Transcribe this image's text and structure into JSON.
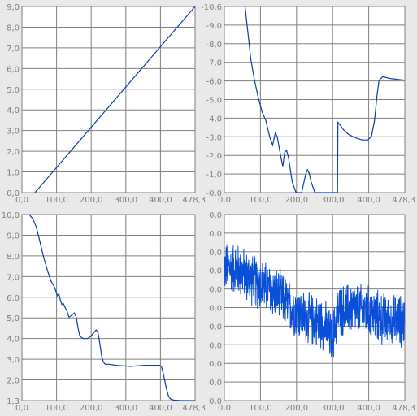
{
  "chart_data": [
    {
      "type": "line",
      "title": "",
      "xlabel": "",
      "ylabel": "",
      "xlim": [
        0,
        478.3
      ],
      "ylim": [
        0,
        9.0
      ],
      "x_ticks": [
        "0,0",
        "100,0",
        "200,0",
        "300,0",
        "400,0",
        "478,3"
      ],
      "y_ticks": [
        "0,0",
        "1,0",
        "2,0",
        "3,0",
        "4,0",
        "5,0",
        "6,0",
        "7,0",
        "8,0",
        "9,0"
      ],
      "grid": true,
      "series": [
        {
          "color": "#0b3ea6",
          "x": [
            36,
            478.3
          ],
          "y": [
            0.0,
            9.0
          ]
        }
      ]
    },
    {
      "type": "line",
      "title": "",
      "xlabel": "",
      "ylabel": "",
      "xlim": [
        0,
        478.3
      ],
      "ylim": [
        -10.6,
        0.0
      ],
      "x_ticks": [
        "0,0",
        "100,0",
        "200,0",
        "300,0",
        "400,0",
        "478,3"
      ],
      "y_ticks": [
        "-0,0",
        "-1,0",
        "-2,0",
        "-3,0",
        "-4,0",
        "-5,0",
        "-6,0",
        "-7,0",
        "-8,0",
        "-9,0",
        "-10,6"
      ],
      "grid": true,
      "series": [
        {
          "color": "#0b3ea6",
          "x": [
            55,
            60,
            65,
            70,
            80,
            90,
            100,
            110,
            120,
            128,
            135,
            140,
            145,
            150,
            155,
            160,
            165,
            170,
            175,
            180,
            190,
            200,
            205,
            215,
            220,
            225,
            230,
            240,
            250,
            260,
            290,
            300,
            301,
            305,
            315,
            330,
            350,
            365,
            380,
            390,
            398,
            405,
            410,
            420,
            440,
            478.3
          ],
          "y": [
            0.0,
            -1.0,
            -2.0,
            -3.0,
            -4.2,
            -5.2,
            -6.0,
            -6.5,
            -7.4,
            -7.9,
            -7.2,
            -7.4,
            -8.0,
            -8.6,
            -9.1,
            -8.3,
            -8.2,
            -8.6,
            -9.3,
            -10.0,
            -10.6,
            -10.6,
            -10.6,
            -9.6,
            -9.3,
            -9.5,
            -10.0,
            -10.6,
            -10.6,
            -10.6,
            -10.6,
            -10.6,
            -6.6,
            -6.7,
            -7.0,
            -7.3,
            -7.5,
            -7.6,
            -7.6,
            -7.4,
            -6.5,
            -5.0,
            -4.2,
            -4.0,
            -4.1,
            -4.2
          ]
        }
      ]
    },
    {
      "type": "line",
      "title": "",
      "xlabel": "",
      "ylabel": "",
      "xlim": [
        0,
        478.3
      ],
      "ylim": [
        1.3,
        10.0
      ],
      "x_ticks": [
        "0,0",
        "100,0",
        "200,0",
        "300,0",
        "400,0",
        "478,3"
      ],
      "y_ticks": [
        "1,3",
        "2,0",
        "3,0",
        "4,0",
        "5,0",
        "6,0",
        "7,0",
        "8,0",
        "9,0",
        "10,0"
      ],
      "grid": true,
      "series": [
        {
          "color": "#0b3ea6",
          "x": [
            0,
            20,
            30,
            40,
            50,
            60,
            70,
            80,
            90,
            98,
            102,
            106,
            110,
            114,
            118,
            124,
            130,
            138,
            145,
            150,
            155,
            160,
            170,
            180,
            190,
            200,
            205,
            210,
            215,
            220,
            225,
            230,
            240,
            260,
            300,
            340,
            360,
            380,
            385,
            390,
            395,
            400,
            405,
            410,
            420,
            440,
            478.3
          ],
          "y": [
            10.0,
            10.0,
            9.8,
            9.4,
            8.7,
            8.0,
            7.4,
            6.9,
            6.6,
            6.2,
            6.3,
            6.0,
            5.8,
            5.85,
            5.7,
            5.5,
            5.2,
            5.3,
            5.4,
            5.2,
            4.7,
            4.3,
            4.2,
            4.2,
            4.3,
            4.5,
            4.6,
            4.5,
            4.0,
            3.4,
            3.1,
            3.0,
            3.0,
            2.95,
            2.9,
            2.95,
            2.95,
            2.95,
            2.9,
            2.6,
            2.2,
            1.8,
            1.5,
            1.38,
            1.32,
            1.3,
            1.3
          ]
        }
      ]
    },
    {
      "type": "line",
      "title": "",
      "xlabel": "",
      "ylabel": "",
      "xlim": [
        0,
        478.3
      ],
      "ylim": [
        0,
        10.5
      ],
      "x_ticks": [
        "0,0",
        "100,0",
        "200,0",
        "300,0",
        "400,0",
        "478,3"
      ],
      "y_ticks": [
        "0,0",
        "0,0",
        "0,0",
        "0,0",
        "0,0",
        "0,0",
        "0,0",
        "0,0",
        "0,0",
        "0,0",
        "0,0"
      ],
      "grid": true,
      "noise": {
        "amplitude": 1.4,
        "step": 0.5
      },
      "series": [
        {
          "color": "#0b3ea6",
          "fill": "#0a4fd8",
          "x": [
            0,
            30,
            60,
            100,
            140,
            180,
            220,
            260,
            285,
            290,
            300,
            340,
            380,
            420,
            460,
            478.3
          ],
          "y": [
            7.5,
            7.5,
            7.0,
            6.5,
            6.0,
            5.2,
            4.6,
            4.4,
            3.5,
            3.8,
            5.0,
            5.2,
            5.0,
            4.6,
            4.5,
            4.5
          ]
        }
      ]
    }
  ]
}
